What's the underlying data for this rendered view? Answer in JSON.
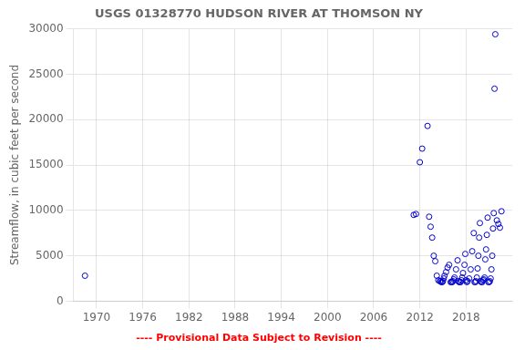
{
  "chart_data": {
    "type": "scatter",
    "title": "USGS 01328770 HUDSON RIVER AT THOMSON NY",
    "y_label": "Streamflow, in cubic feet per second",
    "annotations": [
      {
        "text": "---- Provisional Data Subject to Revision ----",
        "color": "red"
      }
    ],
    "color": "#0000cc",
    "marker": "circle",
    "grid": true,
    "xlim": [
      1967,
      2024
    ],
    "ylim": [
      0,
      30000
    ],
    "xticks": [
      1970,
      1976,
      1982,
      1988,
      1994,
      2000,
      2006,
      2012,
      2018
    ],
    "yticks": [
      0,
      5000,
      10000,
      15000,
      20000,
      25000,
      30000
    ],
    "x": [
      1968.5,
      2011.2,
      2011.5,
      2012.0,
      2012.3,
      2013.0,
      2013.2,
      2013.4,
      2013.6,
      2013.8,
      2014.0,
      2014.2,
      2014.4,
      2014.6,
      2014.7,
      2014.8,
      2014.9,
      2015.0,
      2015.1,
      2015.2,
      2015.4,
      2015.6,
      2015.8,
      2016.0,
      2016.1,
      2016.2,
      2016.3,
      2016.4,
      2016.5,
      2016.7,
      2016.9,
      2017.0,
      2017.1,
      2017.2,
      2017.3,
      2017.4,
      2017.5,
      2017.6,
      2017.8,
      2017.9,
      2018.0,
      2018.1,
      2018.2,
      2018.4,
      2018.6,
      2018.8,
      2019.0,
      2019.1,
      2019.2,
      2019.3,
      2019.4,
      2019.5,
      2019.6,
      2019.7,
      2019.8,
      2019.9,
      2020.0,
      2020.1,
      2020.2,
      2020.3,
      2020.4,
      2020.5,
      2020.6,
      2020.7,
      2020.8,
      2020.9,
      2021.0,
      2021.1,
      2021.2,
      2021.3,
      2021.4,
      2021.5,
      2021.6,
      2021.7,
      2021.8,
      2022.0,
      2022.2,
      2022.4,
      2022.6
    ],
    "values": [
      2800,
      9500,
      9600,
      15300,
      16800,
      19300,
      9300,
      8200,
      7000,
      5000,
      4400,
      2800,
      2300,
      2200,
      2200,
      2100,
      2100,
      2200,
      2500,
      2800,
      3200,
      3700,
      4000,
      2100,
      2100,
      2100,
      2200,
      2400,
      2600,
      3500,
      4500,
      2200,
      2100,
      2100,
      2100,
      2300,
      2600,
      3100,
      4000,
      5200,
      2300,
      2100,
      2200,
      2500,
      3500,
      5500,
      7500,
      2100,
      2100,
      2200,
      2600,
      3600,
      5000,
      7000,
      8600,
      2200,
      2100,
      2100,
      2300,
      2400,
      2600,
      4600,
      5700,
      7300,
      9200,
      2100,
      2100,
      2200,
      2500,
      3500,
      5000,
      8000,
      9700,
      23400,
      29400,
      8900,
      8500,
      8100,
      9900
    ]
  }
}
